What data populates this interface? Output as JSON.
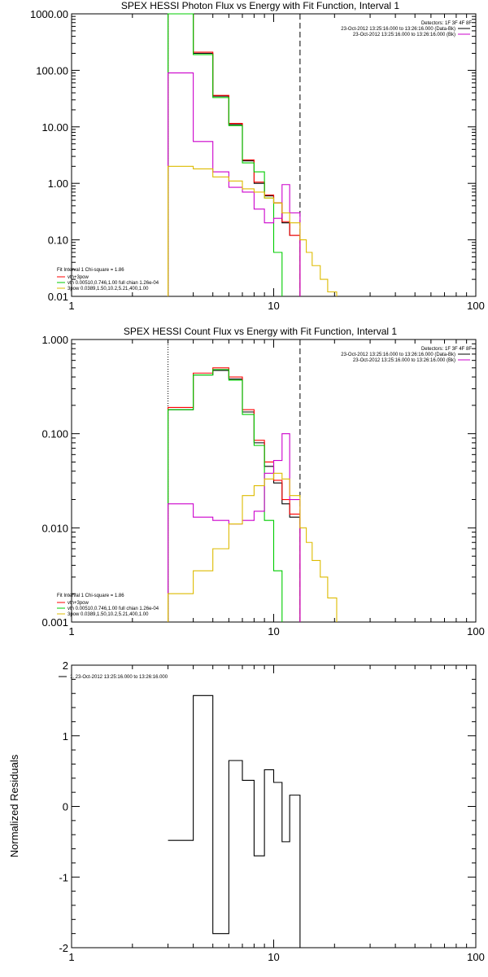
{
  "chart_data": [
    {
      "type": "line",
      "title": "SPEX HESSI Photon Flux vs Energy with Fit Function, Interval 1",
      "xlabel": "",
      "ylabel": "",
      "xscale": "log",
      "yscale": "log",
      "xlim": [
        1,
        100
      ],
      "ylim": [
        0.01,
        1000
      ],
      "x_tick_labels": [
        "1",
        "10",
        "100"
      ],
      "y_tick_labels": [
        "0.01",
        "0.10",
        "1.00",
        "10.00",
        "100.00",
        "1000.00"
      ],
      "info_text": [
        "Detectors: 1F 3F 4F 8F",
        "23-Oct-2012 13:25:16.000 to 13:26:16.000 (Data-Bk)",
        "23-Oct-2012 13:25:16.000 to 13:26:16.000 (Bk)"
      ],
      "legend_items": [
        "Fit Interval 1   Chi-square = 1.86",
        "vth+3pow",
        "vth 0.00510,0.746,1.00  full chian 1.26e-04",
        "3pow 0.0389,1.50,10.2,5.21,400,1.00"
      ],
      "vlines": [
        {
          "x": 3.0,
          "style": "dotted",
          "color": "#000000"
        },
        {
          "x": 13.5,
          "style": "dashed",
          "color": "#000000"
        }
      ],
      "series": [
        {
          "color": "#000000",
          "edges": [
            3.0,
            4.0,
            5.0,
            6.0,
            7.0,
            8.0,
            9.0,
            10.0,
            11.0,
            12.0,
            13.5
          ],
          "values": [
            1000,
            200,
            35,
            11,
            2.5,
            1.0,
            0.6,
            0.45,
            0.2,
            0.12
          ]
        },
        {
          "color": "#ff0000",
          "edges": [
            3.0,
            4.0,
            5.0,
            6.0,
            7.0,
            8.0,
            9.0,
            10.0,
            11.0,
            12.0,
            13.5
          ],
          "values": [
            1050,
            210,
            36,
            11.5,
            2.6,
            1.05,
            0.62,
            0.45,
            0.21,
            0.12
          ]
        },
        {
          "color": "#00cc00",
          "edges": [
            3.0,
            4.0,
            5.0,
            6.0,
            7.0,
            8.0,
            9.0,
            10.0,
            11.0
          ],
          "values": [
            1000,
            190,
            33,
            10.5,
            2.3,
            1.6,
            0.55,
            0.06,
            0.01
          ]
        },
        {
          "color": "#cc00cc",
          "edges": [
            3.0,
            4.0,
            5.0,
            6.0,
            7.0,
            8.0,
            9.0,
            10.0,
            11.0,
            12.0,
            13.5
          ],
          "values": [
            90,
            5.5,
            1.6,
            0.85,
            0.7,
            0.35,
            0.2,
            0.24,
            0.95,
            0.3
          ]
        },
        {
          "color": "#ddbb00",
          "edges": [
            3.0,
            4.0,
            5.0,
            6.0,
            7.0,
            8.0,
            9.0,
            10.0,
            11.0,
            12.0,
            13.5,
            14.5,
            15.5,
            17.0,
            18.5,
            20.5
          ],
          "values": [
            2.0,
            1.8,
            1.3,
            1.1,
            0.8,
            0.7,
            0.55,
            0.45,
            0.3,
            0.2,
            0.1,
            0.06,
            0.035,
            0.02,
            0.012
          ]
        }
      ]
    },
    {
      "type": "line",
      "title": "SPEX HESSI Count Flux vs Energy with Fit Function, Interval 1",
      "xlabel": "",
      "ylabel": "",
      "xscale": "log",
      "yscale": "log",
      "xlim": [
        1,
        100
      ],
      "ylim": [
        0.001,
        1.0
      ],
      "x_tick_labels": [
        "1",
        "10",
        "100"
      ],
      "y_tick_labels": [
        "0.001",
        "0.010",
        "0.100",
        "1.000"
      ],
      "info_text": [
        "Detectors: 1F 3F 4F 8F",
        "23-Oct-2012 13:25:16.000 to 13:26:16.000 (Data-Bk)",
        "23-Oct-2012 13:25:16.000 to 13:26:16.000 (Bk)"
      ],
      "legend_items": [
        "Fit Interval 1   Chi-square = 1.86",
        "vth+3pow",
        "vth 0.00510,0.746,1.00  full chian 1.26e-04",
        "3pow 0.0389,1.50,10.2,5.21,400,1.00"
      ],
      "vlines": [
        {
          "x": 3.0,
          "style": "dotted",
          "color": "#000000"
        },
        {
          "x": 13.5,
          "style": "dashed",
          "color": "#000000"
        }
      ],
      "series": [
        {
          "color": "#000000",
          "edges": [
            3.0,
            4.0,
            5.0,
            6.0,
            7.0,
            8.0,
            9.0,
            10.0,
            11.0,
            12.0,
            13.5
          ],
          "values": [
            0.18,
            0.42,
            0.47,
            0.38,
            0.17,
            0.08,
            0.045,
            0.03,
            0.018,
            0.013
          ]
        },
        {
          "color": "#ff0000",
          "edges": [
            3.0,
            4.0,
            5.0,
            6.0,
            7.0,
            8.0,
            9.0,
            10.0,
            11.0,
            12.0,
            13.5
          ],
          "values": [
            0.19,
            0.44,
            0.5,
            0.4,
            0.18,
            0.085,
            0.05,
            0.032,
            0.02,
            0.014
          ]
        },
        {
          "color": "#00cc00",
          "edges": [
            3.0,
            4.0,
            5.0,
            6.0,
            7.0,
            8.0,
            9.0,
            10.0,
            11.0
          ],
          "values": [
            0.18,
            0.42,
            0.48,
            0.37,
            0.16,
            0.075,
            0.012,
            0.0035,
            0.001
          ]
        },
        {
          "color": "#cc00cc",
          "edges": [
            3.0,
            4.0,
            5.0,
            6.0,
            7.0,
            8.0,
            9.0,
            10.0,
            11.0,
            12.0,
            13.5
          ],
          "values": [
            0.018,
            0.013,
            0.012,
            0.011,
            0.012,
            0.015,
            0.038,
            0.052,
            0.1,
            0.02
          ]
        },
        {
          "color": "#ddbb00",
          "edges": [
            3.0,
            4.0,
            5.0,
            6.0,
            7.0,
            8.0,
            9.0,
            10.0,
            11.0,
            12.0,
            13.5,
            14.5,
            15.5,
            17.0,
            18.5,
            20.5
          ],
          "values": [
            0.002,
            0.0035,
            0.006,
            0.011,
            0.022,
            0.028,
            0.033,
            0.038,
            0.033,
            0.022,
            0.01,
            0.007,
            0.0045,
            0.003,
            0.0018
          ]
        }
      ]
    },
    {
      "type": "line",
      "title": "",
      "xlabel": "",
      "ylabel": "Normalized Residuals",
      "xscale": "log",
      "yscale": "linear",
      "xlim": [
        1,
        100
      ],
      "ylim": [
        -2,
        2
      ],
      "x_tick_labels": [
        "1",
        "10",
        "100"
      ],
      "y_tick_labels": [
        "-2",
        "-1",
        "0",
        "1",
        "2"
      ],
      "legend_items": [
        "1. 23-Oct-2012 13:25:16.000 to 13:26:16.000"
      ],
      "series": [
        {
          "color": "#000000",
          "edges": [
            3.0,
            4.0,
            5.0,
            6.0,
            7.0,
            8.0,
            9.0,
            10.0,
            11.0,
            12.0,
            13.5
          ],
          "values": [
            -0.48,
            1.57,
            -1.8,
            0.65,
            0.37,
            -0.7,
            0.52,
            0.34,
            -0.5,
            0.16
          ]
        }
      ]
    }
  ]
}
